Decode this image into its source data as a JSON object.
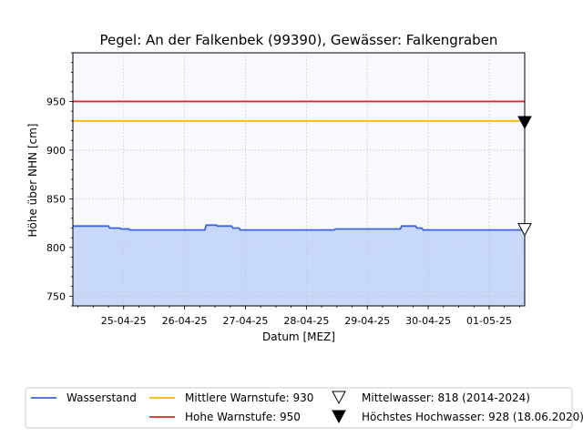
{
  "chart_data": {
    "type": "area",
    "title": "Pegel:  An der Falkenbek (99390), Gewässer:  Falkengraben",
    "xlabel": "Datum [MEZ]",
    "ylabel": "Höhe über NHN [cm]",
    "ylim": [
      740,
      1000
    ],
    "yticks": [
      750,
      800,
      850,
      900,
      950
    ],
    "xlim": [
      "2025-04-24T16:00",
      "2025-05-02T02:00"
    ],
    "xtick_labels": [
      "25-04-25",
      "26-04-25",
      "27-04-25",
      "28-04-25",
      "29-04-25",
      "30-04-25",
      "01-05-25"
    ],
    "grid": true,
    "series": [
      {
        "name": "Wasserstand",
        "color": "#3c64dc",
        "fill": "#c8d8f8",
        "x": [
          "2025-04-24T16:00",
          "2025-04-25T06:00",
          "2025-04-25T06:30",
          "2025-04-25T10:30",
          "2025-04-25T11:00",
          "2025-04-25T14:00",
          "2025-04-25T14:30",
          "2025-04-26T20:00",
          "2025-04-26T20:30",
          "2025-04-27T00:30",
          "2025-04-27T01:00",
          "2025-04-27T06:30",
          "2025-04-27T07:00",
          "2025-04-27T09:30",
          "2025-04-27T10:00",
          "2025-04-28T23:00",
          "2025-04-28T23:30",
          "2025-04-30T01:00",
          "2025-04-30T01:30",
          "2025-04-30T07:00",
          "2025-04-30T07:30",
          "2025-04-30T09:30",
          "2025-04-30T10:00",
          "2025-05-02T02:00"
        ],
        "y": [
          822,
          822,
          820,
          820,
          819,
          819,
          818,
          818,
          823,
          823,
          822,
          822,
          820,
          820,
          818,
          818,
          819,
          819,
          822,
          822,
          820,
          820,
          818,
          818
        ]
      },
      {
        "name": "Mittlere Warnstufe: 930",
        "type": "hline",
        "y": 930,
        "color": "#ffb400"
      },
      {
        "name": "Hohe Warnstufe: 950",
        "type": "hline",
        "y": 950,
        "color": "#dc2828"
      },
      {
        "name": "Mittelwasser: 818 (2014-2024)",
        "type": "marker",
        "marker": "open-down-triangle",
        "y": 818,
        "color": "#000000"
      },
      {
        "name": "Höchstes Hochwasser: 928 (18.06.2020)",
        "type": "marker",
        "marker": "filled-down-triangle",
        "y": 928,
        "color": "#000000"
      }
    ],
    "legend": {
      "position": "bottom-center",
      "columns": 3,
      "entries": [
        {
          "label": "Wasserstand",
          "kind": "line",
          "color": "#3c64dc"
        },
        {
          "label": "Mittlere Warnstufe: 930",
          "kind": "line",
          "color": "#ffb400"
        },
        {
          "label": "Mittelwasser: 818 (2014-2024)",
          "kind": "open-triangle",
          "color": "#000000"
        },
        {
          "label": "Hohe Warnstufe: 950",
          "kind": "line",
          "color": "#dc2828"
        },
        {
          "label": "Höchstes Hochwasser: 928 (18.06.2020)",
          "kind": "filled-triangle",
          "color": "#000000"
        }
      ]
    },
    "colors": {
      "plot_background": "#f8f8ff"
    }
  }
}
